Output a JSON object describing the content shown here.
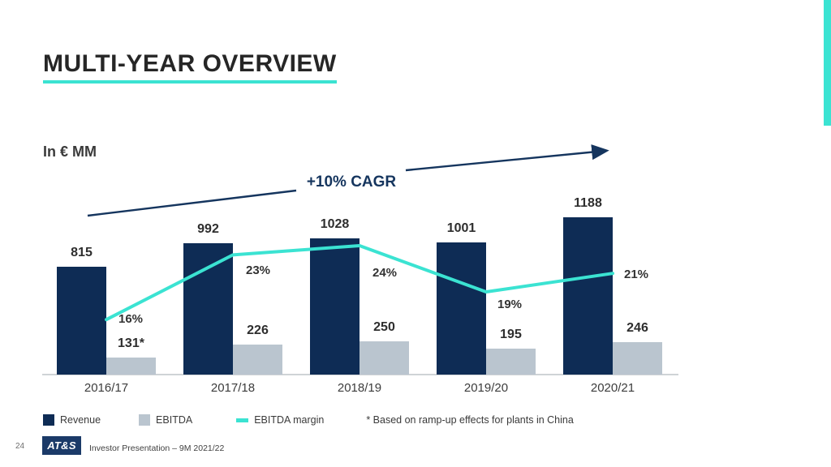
{
  "slide": {
    "title": "MULTI-YEAR OVERVIEW",
    "units_label": "In € MM",
    "cagr_label": "+10% CAGR",
    "footnote": "* Based on ramp-up effects for plants in China",
    "page_number": "24",
    "logo_text": "AT&S",
    "footer_text": "Investor Presentation – 9M 2021/22"
  },
  "legend": {
    "revenue": "Revenue",
    "ebitda": "EBITDA",
    "margin": "EBITDA margin"
  },
  "colors": {
    "navy": "#0E2C55",
    "gray": "#BAC5CF",
    "teal": "#3BE3D2",
    "arrow_navy": "#15355E",
    "text_dark": "#2E2E2E"
  },
  "chart_data": {
    "type": "bar",
    "title": "MULTI-YEAR OVERVIEW",
    "ylabel": "In € MM",
    "categories": [
      "2016/17",
      "2017/18",
      "2018/19",
      "2019/20",
      "2020/21"
    ],
    "series": [
      {
        "name": "Revenue",
        "type": "bar",
        "values": [
          815,
          992,
          1028,
          1001,
          1188
        ]
      },
      {
        "name": "EBITDA",
        "type": "bar",
        "values": [
          131,
          226,
          250,
          195,
          246
        ]
      },
      {
        "name": "EBITDA margin",
        "type": "line",
        "unit": "%",
        "values": [
          16,
          23,
          24,
          19,
          21
        ]
      }
    ],
    "revenue_labels": [
      "815",
      "992",
      "1028",
      "1001",
      "1188"
    ],
    "ebitda_labels": [
      "131*",
      "226",
      "250",
      "195",
      "246"
    ],
    "margin_labels": [
      "16%",
      "23%",
      "24%",
      "19%",
      "21%"
    ],
    "annotations": [
      "+10% CAGR",
      "* Based on ramp-up effects for plants in China"
    ],
    "legend_position": "bottom",
    "grid": false,
    "ylim": [
      0,
      1300
    ]
  }
}
